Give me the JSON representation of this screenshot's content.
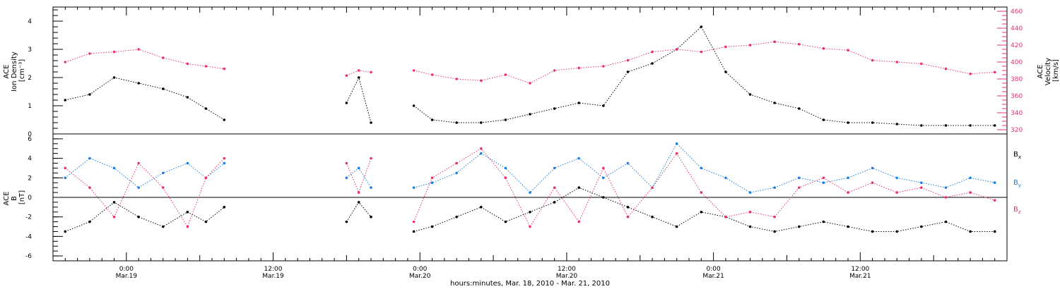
{
  "colors": {
    "black": "#000000",
    "pink": "#e8336a",
    "blue": "#1a7fe0"
  },
  "chart_data": [
    {
      "type": "scatter",
      "panel": "top",
      "ylabel_left": [
        "ACE",
        "Ion Density",
        "[cm⁻³]"
      ],
      "ylabel_right": [
        "ACE",
        "Velocity",
        "[km/s]"
      ],
      "ylim_left": [
        0,
        4.5
      ],
      "ylim_right": [
        315,
        465
      ],
      "yticks_left": [
        "0",
        "1",
        "2",
        "3",
        "4"
      ],
      "yticks_right": [
        "320",
        "340",
        "360",
        "380",
        "400",
        "420",
        "440",
        "460"
      ],
      "xlim_hours": [
        0,
        78
      ],
      "series": [
        {
          "key": "density",
          "color": "#000000",
          "x": [
            1,
            3,
            5,
            7,
            9,
            11,
            12.5,
            14,
            24,
            25,
            26,
            29.5,
            31,
            33,
            35,
            37,
            39,
            41,
            43,
            45,
            47,
            49,
            51,
            53,
            55,
            57,
            59,
            61,
            63,
            65,
            67,
            69,
            71,
            73,
            75,
            77
          ],
          "y": [
            1.2,
            1.4,
            2.0,
            1.8,
            1.6,
            1.3,
            0.9,
            0.5,
            1.1,
            2.0,
            0.4,
            1.0,
            0.5,
            0.4,
            0.4,
            0.5,
            0.7,
            0.9,
            1.1,
            1.0,
            2.2,
            2.5,
            3.0,
            3.8,
            2.2,
            1.4,
            1.1,
            0.9,
            0.5,
            0.4,
            0.4,
            0.35,
            0.3,
            0.3,
            0.3,
            0.3
          ],
          "gaps_after": [
            14,
            26
          ]
        },
        {
          "key": "velocity",
          "color": "#e8336a",
          "x": [
            1,
            3,
            5,
            7,
            9,
            11,
            12.5,
            14,
            24,
            25,
            26,
            29.5,
            31,
            33,
            35,
            37,
            39,
            41,
            43,
            45,
            47,
            49,
            51,
            53,
            55,
            57,
            59,
            61,
            63,
            65,
            67,
            69,
            71,
            73,
            75,
            77
          ],
          "y": [
            400,
            410,
            412,
            415,
            405,
            398,
            395,
            392,
            384,
            390,
            388,
            390,
            385,
            380,
            378,
            385,
            375,
            390,
            393,
            395,
            402,
            412,
            415,
            412,
            418,
            420,
            424,
            421,
            416,
            414,
            402,
            400,
            398,
            392,
            386,
            388
          ],
          "gaps_after": [
            14,
            26
          ]
        }
      ]
    },
    {
      "type": "scatter",
      "panel": "bottom",
      "ylabel": [
        "ACE",
        "B",
        "[nT]"
      ],
      "ylim": [
        -6.5,
        6.5
      ],
      "yticks": [
        "-6",
        "-4",
        "-2",
        "0",
        "2",
        "4",
        "6"
      ],
      "xlim_hours": [
        0,
        78
      ],
      "legend_position": "right",
      "series": [
        {
          "name": "Bx",
          "color": "#000000",
          "x": [
            1,
            3,
            5,
            7,
            9,
            11,
            12.5,
            14,
            24,
            25,
            26,
            29.5,
            31,
            33,
            35,
            37,
            39,
            41,
            43,
            45,
            47,
            49,
            51,
            53,
            55,
            57,
            59,
            61,
            63,
            65,
            67,
            69,
            71,
            73,
            75,
            77
          ],
          "y": [
            -3.5,
            -2.5,
            -0.5,
            -2.0,
            -3.0,
            -1.5,
            -2.5,
            -1.0,
            -2.5,
            -0.5,
            -2.0,
            -3.5,
            -3.0,
            -2.0,
            -1.0,
            -2.5,
            -1.5,
            -0.5,
            1.0,
            0.0,
            -1.0,
            -2.0,
            -3.0,
            -1.5,
            -2.0,
            -3.0,
            -3.5,
            -3.0,
            -2.5,
            -3.0,
            -3.5,
            -3.5,
            -3.0,
            -2.5,
            -3.5,
            -3.5
          ],
          "gaps_after": [
            14,
            26
          ]
        },
        {
          "name": "By",
          "color": "#1a7fe0",
          "x": [
            1,
            3,
            5,
            7,
            9,
            11,
            12.5,
            14,
            24,
            25,
            26,
            29.5,
            31,
            33,
            35,
            37,
            39,
            41,
            43,
            45,
            47,
            49,
            51,
            53,
            55,
            57,
            59,
            61,
            63,
            65,
            67,
            69,
            71,
            73,
            75,
            77
          ],
          "y": [
            2.0,
            4.0,
            3.0,
            1.0,
            2.5,
            3.5,
            2.0,
            3.5,
            2.0,
            3.0,
            1.0,
            1.0,
            1.5,
            2.5,
            4.5,
            3.0,
            0.5,
            3.0,
            4.0,
            2.0,
            3.5,
            1.0,
            5.5,
            3.0,
            2.0,
            0.5,
            1.0,
            2.0,
            1.5,
            2.0,
            3.0,
            2.0,
            1.5,
            1.0,
            2.0,
            1.5
          ],
          "gaps_after": [
            14,
            26
          ]
        },
        {
          "name": "Bz",
          "color": "#e8336a",
          "x": [
            1,
            3,
            5,
            7,
            9,
            11,
            12.5,
            14,
            24,
            25,
            26,
            29.5,
            31,
            33,
            35,
            37,
            39,
            41,
            43,
            45,
            47,
            49,
            51,
            53,
            55,
            57,
            59,
            61,
            63,
            65,
            67,
            69,
            71,
            73,
            75,
            77
          ],
          "y": [
            3.0,
            1.0,
            -2.0,
            3.5,
            1.0,
            -3.0,
            2.0,
            4.0,
            3.5,
            0.5,
            4.0,
            -2.5,
            2.0,
            3.5,
            5.0,
            2.0,
            -3.0,
            1.0,
            -2.5,
            3.0,
            -2.0,
            1.0,
            4.5,
            0.5,
            -2.0,
            -1.5,
            -2.0,
            1.0,
            2.0,
            0.5,
            1.5,
            0.5,
            1.0,
            0.0,
            0.5,
            -0.3
          ],
          "gaps_after": [
            14,
            26
          ]
        }
      ]
    }
  ],
  "legend": {
    "bx": "B",
    "bx_sub": "x",
    "by": "B",
    "by_sub": "y",
    "bz": "B",
    "bz_sub": "z"
  },
  "x_axis": {
    "major_ticks": [
      {
        "hour": 6,
        "time": "0:00",
        "date": "Mar.19"
      },
      {
        "hour": 18,
        "time": "12:00",
        "date": "Mar.19"
      },
      {
        "hour": 30,
        "time": "0:00",
        "date": "Mar.20"
      },
      {
        "hour": 42,
        "time": "12:00",
        "date": "Mar.20"
      },
      {
        "hour": 54,
        "time": "0:00",
        "date": "Mar.21"
      },
      {
        "hour": 66,
        "time": "12:00",
        "date": "Mar.21"
      }
    ],
    "title": "hours:minutes, Mar. 18, 2010 - Mar. 21, 2010"
  }
}
